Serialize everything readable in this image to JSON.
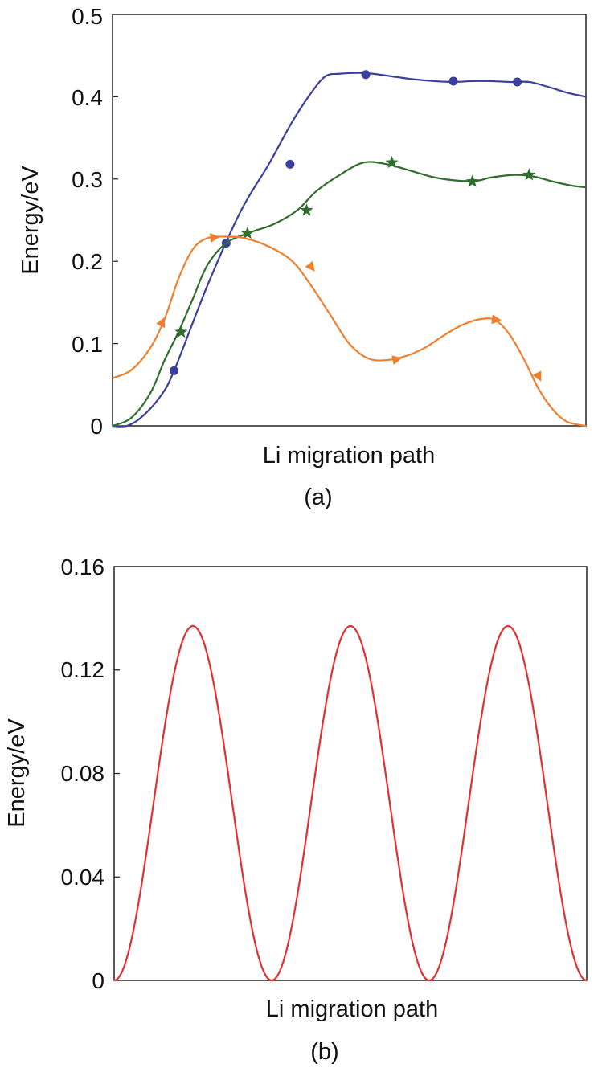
{
  "chart_data": [
    {
      "type": "line",
      "caption": "(a)",
      "xlabel": "Li migration path",
      "ylabel": "Energy/eV",
      "ylim": [
        0,
        0.5
      ],
      "xlim": [
        0,
        1
      ],
      "yticks": [
        "0",
        "0.1",
        "0.2",
        "0.3",
        "0.4",
        "0.5"
      ],
      "series": [
        {
          "color": "#3a3f9e",
          "marker": "circle",
          "x": [
            0.0,
            0.03,
            0.06,
            0.1,
            0.13,
            0.2,
            0.27,
            0.33,
            0.38,
            0.42,
            0.45,
            0.48,
            0.52,
            0.55,
            0.6,
            0.64,
            0.68,
            0.72,
            0.76,
            0.8,
            0.84,
            0.88,
            0.92,
            0.96,
            1.0
          ],
          "y": [
            0.0,
            0.0,
            0.01,
            0.035,
            0.067,
            0.17,
            0.26,
            0.318,
            0.37,
            0.405,
            0.425,
            0.428,
            0.429,
            0.428,
            0.424,
            0.421,
            0.419,
            0.418,
            0.419,
            0.419,
            0.418,
            0.418,
            0.412,
            0.405,
            0.4
          ],
          "markers_x": [
            0.13,
            0.24,
            0.375,
            0.535,
            0.72,
            0.855
          ],
          "markers_y": [
            0.067,
            0.222,
            0.318,
            0.427,
            0.419,
            0.418
          ]
        },
        {
          "color": "#2f6e2f",
          "marker": "star",
          "x": [
            0.0,
            0.04,
            0.08,
            0.11,
            0.14,
            0.17,
            0.2,
            0.24,
            0.29,
            0.34,
            0.39,
            0.43,
            0.48,
            0.53,
            0.58,
            0.63,
            0.68,
            0.73,
            0.77,
            0.8,
            0.85,
            0.89,
            0.93,
            0.97,
            1.0
          ],
          "y": [
            0.0,
            0.01,
            0.04,
            0.08,
            0.115,
            0.155,
            0.195,
            0.222,
            0.235,
            0.245,
            0.262,
            0.285,
            0.305,
            0.32,
            0.318,
            0.31,
            0.302,
            0.298,
            0.298,
            0.302,
            0.305,
            0.303,
            0.297,
            0.292,
            0.29
          ],
          "markers_x": [
            0.145,
            0.285,
            0.41,
            0.59,
            0.76,
            0.88
          ],
          "markers_y": [
            0.114,
            0.234,
            0.262,
            0.32,
            0.297,
            0.305
          ]
        },
        {
          "color": "#f07f2d",
          "marker": "triangle",
          "x": [
            0.0,
            0.04,
            0.08,
            0.11,
            0.14,
            0.17,
            0.2,
            0.24,
            0.28,
            0.33,
            0.38,
            0.42,
            0.46,
            0.5,
            0.54,
            0.58,
            0.62,
            0.66,
            0.7,
            0.74,
            0.78,
            0.81,
            0.84,
            0.87,
            0.9,
            0.93,
            0.96,
            1.0
          ],
          "y": [
            0.058,
            0.068,
            0.095,
            0.13,
            0.18,
            0.215,
            0.228,
            0.23,
            0.228,
            0.218,
            0.2,
            0.17,
            0.135,
            0.1,
            0.082,
            0.08,
            0.085,
            0.095,
            0.11,
            0.123,
            0.13,
            0.128,
            0.11,
            0.08,
            0.045,
            0.02,
            0.005,
            0.0
          ],
          "markers_x": [
            0.105,
            0.215,
            0.42,
            0.6,
            0.81,
            0.9
          ],
          "markers_y": [
            0.126,
            0.229,
            0.193,
            0.081,
            0.129,
            0.06
          ]
        }
      ]
    },
    {
      "type": "line",
      "caption": "(b)",
      "xlabel": "Li migration path",
      "ylabel": "Energy/eV",
      "ylim": [
        0,
        0.16
      ],
      "xlim": [
        0,
        3
      ],
      "yticks": [
        "0",
        "0.04",
        "0.08",
        "0.12",
        "0.16"
      ],
      "series": [
        {
          "color": "#e03030",
          "formula": "0.137 * sin^2(pi * x)",
          "peak": 0.137,
          "periods": 3
        }
      ]
    }
  ]
}
